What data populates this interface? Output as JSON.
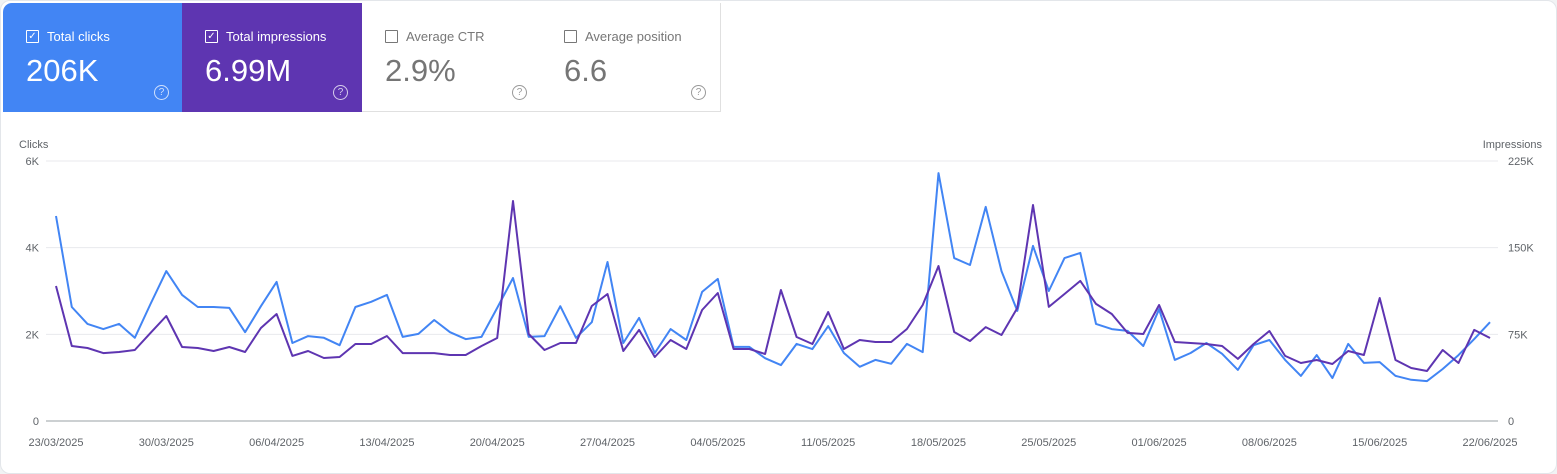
{
  "metrics": [
    {
      "label": "Total clicks",
      "value": "206K",
      "checked": true,
      "color": "#4285f4"
    },
    {
      "label": "Total impressions",
      "value": "6.99M",
      "checked": true,
      "color": "#5e35b1"
    },
    {
      "label": "Average CTR",
      "value": "2.9%",
      "checked": false
    },
    {
      "label": "Average position",
      "value": "6.6",
      "checked": false
    }
  ],
  "chart_data": {
    "type": "line",
    "ylabel_left": "Clicks",
    "ylabel_right": "Impressions",
    "left_ticks": [
      "0",
      "2K",
      "4K",
      "6K"
    ],
    "left_ylim": [
      0,
      6000
    ],
    "right_ticks": [
      "0",
      "75K",
      "150K",
      "225K"
    ],
    "right_ylim": [
      0,
      225000
    ],
    "x_ticks": [
      "23/03/2025",
      "30/03/2025",
      "06/04/2025",
      "13/04/2025",
      "20/04/2025",
      "27/04/2025",
      "04/05/2025",
      "11/05/2025",
      "18/05/2025",
      "25/05/2025",
      "01/06/2025",
      "08/06/2025",
      "15/06/2025",
      "22/06/2025"
    ],
    "grid": true,
    "x": [
      "23/03/2025",
      "24/03/2025",
      "25/03/2025",
      "26/03/2025",
      "27/03/2025",
      "28/03/2025",
      "29/03/2025",
      "30/03/2025",
      "31/03/2025",
      "01/04/2025",
      "02/04/2025",
      "03/04/2025",
      "04/04/2025",
      "05/04/2025",
      "06/04/2025",
      "07/04/2025",
      "08/04/2025",
      "09/04/2025",
      "10/04/2025",
      "11/04/2025",
      "12/04/2025",
      "13/04/2025",
      "14/04/2025",
      "15/04/2025",
      "16/04/2025",
      "17/04/2025",
      "18/04/2025",
      "19/04/2025",
      "20/04/2025",
      "21/04/2025",
      "22/04/2025",
      "23/04/2025",
      "24/04/2025",
      "25/04/2025",
      "26/04/2025",
      "27/04/2025",
      "28/04/2025",
      "29/04/2025",
      "30/04/2025",
      "01/05/2025",
      "02/05/2025",
      "03/05/2025",
      "04/05/2025",
      "05/05/2025",
      "06/05/2025",
      "07/05/2025",
      "08/05/2025",
      "09/05/2025",
      "10/05/2025",
      "11/05/2025",
      "12/05/2025",
      "13/05/2025",
      "14/05/2025",
      "15/05/2025",
      "16/05/2025",
      "17/05/2025",
      "18/05/2025",
      "19/05/2025",
      "20/05/2025",
      "21/05/2025",
      "22/05/2025",
      "23/05/2025",
      "24/05/2025",
      "25/05/2025",
      "26/05/2025",
      "27/05/2025",
      "28/05/2025",
      "29/05/2025",
      "30/05/2025",
      "31/05/2025",
      "01/06/2025",
      "02/06/2025",
      "03/06/2025",
      "04/06/2025",
      "05/06/2025",
      "06/06/2025",
      "07/06/2025",
      "08/06/2025",
      "09/06/2025",
      "10/06/2025",
      "11/06/2025",
      "12/06/2025",
      "13/06/2025",
      "14/06/2025",
      "15/06/2025",
      "16/06/2025",
      "17/06/2025",
      "18/06/2025",
      "19/06/2025",
      "20/06/2025",
      "21/06/2025",
      "22/06/2025"
    ],
    "series": [
      {
        "name": "Clicks",
        "axis": "left",
        "color": "#4285f4",
        "values": [
          4730,
          2630,
          2240,
          2120,
          2240,
          1920,
          2700,
          3460,
          2910,
          2630,
          2630,
          2610,
          2050,
          2650,
          3210,
          1800,
          1960,
          1920,
          1750,
          2630,
          2750,
          2910,
          1940,
          2010,
          2330,
          2050,
          1890,
          1940,
          2610,
          3300,
          1940,
          1960,
          2650,
          1920,
          2280,
          3670,
          1800,
          2380,
          1570,
          2120,
          1870,
          2980,
          3280,
          1710,
          1710,
          1450,
          1290,
          1780,
          1660,
          2190,
          1570,
          1250,
          1410,
          1320,
          1780,
          1590,
          5720,
          3760,
          3600,
          4940,
          3460,
          2540,
          4040,
          3000,
          3760,
          3880,
          2240,
          2120,
          2080,
          1730,
          2580,
          1410,
          1570,
          1800,
          1550,
          1180,
          1750,
          1870,
          1410,
          1040,
          1520,
          990,
          1780,
          1340,
          1360,
          1040,
          950,
          920,
          1200,
          1520,
          1890,
          2280
        ]
      },
      {
        "name": "Impressions",
        "axis": "right",
        "color": "#5e35b1",
        "values": [
          116800,
          64900,
          63200,
          58800,
          59700,
          61400,
          76200,
          90900,
          64000,
          63200,
          60600,
          64000,
          59700,
          80500,
          92600,
          56300,
          60600,
          54500,
          55400,
          66600,
          66600,
          73600,
          58800,
          58800,
          58800,
          57100,
          57100,
          64900,
          71800,
          190400,
          75300,
          61400,
          67500,
          67500,
          99500,
          109900,
          60600,
          78800,
          55400,
          70100,
          62300,
          96100,
          110800,
          62300,
          62300,
          58000,
          113400,
          72700,
          66600,
          94300,
          62300,
          70100,
          68400,
          68400,
          79600,
          100400,
          134100,
          77000,
          69200,
          81300,
          74400,
          97800,
          186900,
          98700,
          109900,
          121200,
          101300,
          92600,
          76200,
          75300,
          100400,
          68400,
          67500,
          66600,
          64900,
          53700,
          66600,
          77900,
          56300,
          50200,
          52800,
          49300,
          60600,
          57100,
          106400,
          52800,
          45900,
          43300,
          61400,
          50200,
          78800,
          71800
        ]
      }
    ]
  }
}
